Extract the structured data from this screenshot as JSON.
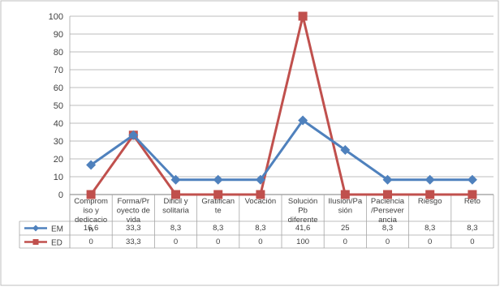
{
  "chart_data": {
    "type": "line",
    "categories": [
      [
        "Comprom",
        "iso y",
        "dedicacio",
        "n"
      ],
      [
        "Forma/Pr",
        "oyecto de",
        "vida"
      ],
      [
        "Dificil y",
        "solitaria"
      ],
      [
        "Gratifican",
        "te"
      ],
      [
        "Vocación"
      ],
      [
        "Solución",
        "Pb",
        "diferente"
      ],
      [
        "Ilusión/Pa",
        "sión"
      ],
      [
        "Paciencia",
        "/Persever",
        "ancia"
      ],
      [
        "Riesgo"
      ],
      [
        "Reto"
      ]
    ],
    "ylim": [
      0,
      100
    ],
    "yticks": [
      "0",
      "10",
      "20",
      "30",
      "40",
      "50",
      "60",
      "70",
      "80",
      "90",
      "100"
    ],
    "grid": true,
    "data_table": true,
    "series": [
      {
        "name": "EM",
        "color": "#4f81bd",
        "marker": "diamond",
        "values": [
          16.6,
          33.3,
          8.3,
          8.3,
          8.3,
          41.6,
          25,
          8.3,
          8.3,
          8.3
        ],
        "labels": [
          "16,6",
          "33,3",
          "8,3",
          "8,3",
          "8,3",
          "41,6",
          "25",
          "8,3",
          "8,3",
          "8,3"
        ]
      },
      {
        "name": "ED",
        "color": "#c0504d",
        "marker": "square",
        "values": [
          0,
          33.3,
          0,
          0,
          0,
          100,
          0,
          0,
          0,
          0
        ],
        "labels": [
          "0",
          "33,3",
          "0",
          "0",
          "0",
          "100",
          "0",
          "0",
          "0",
          "0"
        ]
      }
    ]
  }
}
